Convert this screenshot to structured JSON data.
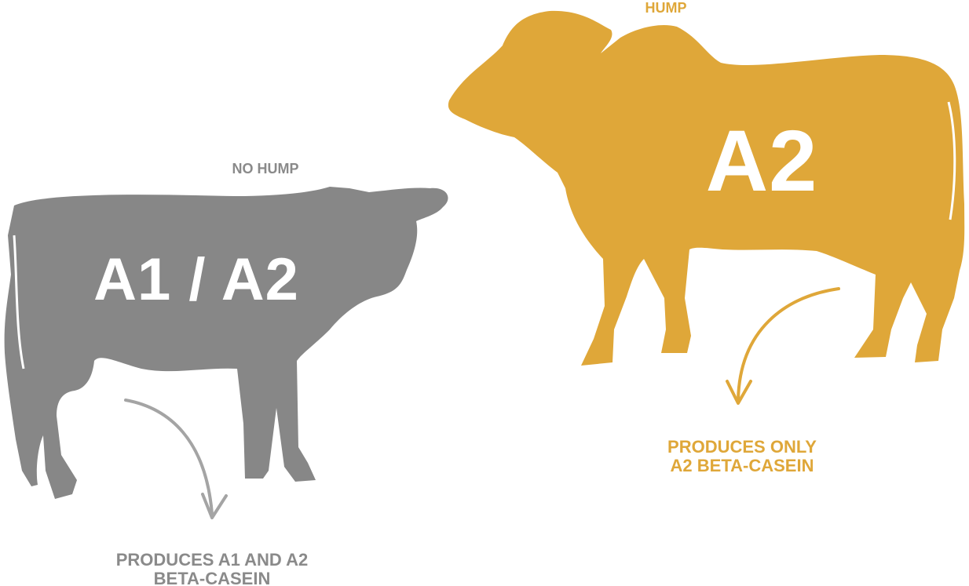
{
  "colors": {
    "grey_cow": "#878787",
    "gold_cow": "#dfa739",
    "grey_text": "#8a8a8a",
    "gold_text": "#dfa739",
    "grey_arrow": "#a4a4a4",
    "gold_arrow": "#dfa739"
  },
  "left_cow": {
    "icon": "cow-silhouette-icon",
    "label": "A1 / A2",
    "feature_label": "NO HUMP",
    "caption_line1": "PRODUCES A1 AND A2",
    "caption_line2": "BETA-CASEIN"
  },
  "right_cow": {
    "icon": "zebu-cow-silhouette-icon",
    "label": "A2",
    "feature_label": "HUMP",
    "caption_line1": "PRODUCES ONLY",
    "caption_line2": "A2 BETA-CASEIN"
  }
}
